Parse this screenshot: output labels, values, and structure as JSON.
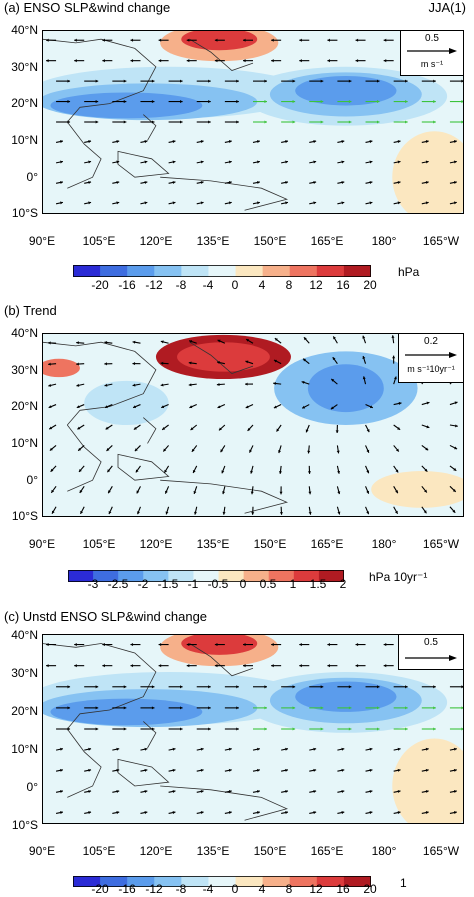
{
  "panels": [
    {
      "title": "(a) ENSO SLP&wind change",
      "season": "JJA(1)",
      "ref_vector": {
        "value": "0.5",
        "unit": "m s⁻¹"
      },
      "colorbar": {
        "ticks": [
          "-20",
          "-16",
          "-12",
          "-8",
          "-4",
          "0",
          "4",
          "8",
          "12",
          "16",
          "20"
        ],
        "unit": "hPa"
      }
    },
    {
      "title": "(b) Trend",
      "season": "",
      "ref_vector": {
        "value": "0.2",
        "unit": "m s⁻¹10yr⁻¹"
      },
      "colorbar": {
        "ticks": [
          "-3",
          "-2.5",
          "-2",
          "-1.5",
          "-1",
          "-0.5",
          "0",
          "0.5",
          "1",
          "1.5",
          "2"
        ],
        "unit": "hPa 10yr⁻¹"
      }
    },
    {
      "title": "(c) Unstd ENSO SLP&wind change",
      "season": "",
      "ref_vector": {
        "value": "0.5",
        "unit": ""
      },
      "colorbar": {
        "ticks": [
          "-20",
          "-16",
          "-12",
          "-8",
          "-4",
          "0",
          "4",
          "8",
          "12",
          "16",
          "20"
        ],
        "unit": "1"
      }
    }
  ],
  "axes": {
    "lat_labels": [
      "40°N",
      "30°N",
      "20°N",
      "10°N",
      "0°",
      "10°S"
    ],
    "lon_labels": [
      "90°E",
      "105°E",
      "120°E",
      "135°E",
      "150°E",
      "165°E",
      "180°",
      "165°W"
    ]
  },
  "colors": {
    "palette": [
      "#2b2bd6",
      "#3e6de0",
      "#5b9cec",
      "#86c2f2",
      "#bfe4f6",
      "#e6f6f9",
      "#fbe7c0",
      "#f6b08a",
      "#ee7460",
      "#dc3b3c",
      "#b01b22"
    ],
    "land_outline": "#333333",
    "sig_vector": "#3cc33c",
    "vector": "#000000"
  }
}
